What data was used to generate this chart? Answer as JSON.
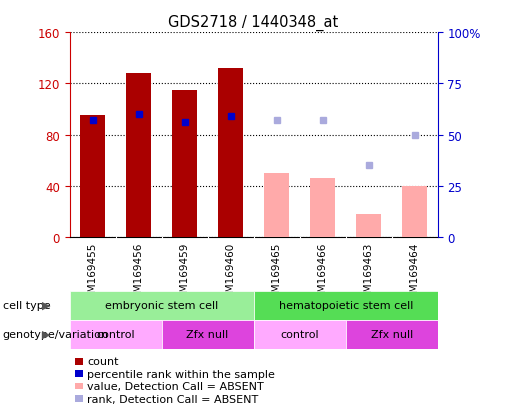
{
  "title": "GDS2718 / 1440348_at",
  "samples": [
    "GSM169455",
    "GSM169456",
    "GSM169459",
    "GSM169460",
    "GSM169465",
    "GSM169466",
    "GSM169463",
    "GSM169464"
  ],
  "count_values": [
    95,
    128,
    115,
    132,
    null,
    null,
    null,
    null
  ],
  "count_absent": [
    null,
    null,
    null,
    null,
    50,
    46,
    18,
    40
  ],
  "rank_values_pct": [
    57,
    60,
    56,
    59,
    null,
    null,
    null,
    null
  ],
  "rank_absent_pct": [
    null,
    null,
    null,
    null,
    57,
    57,
    35,
    50
  ],
  "left_ylim": [
    0,
    160
  ],
  "right_ylim": [
    0,
    100
  ],
  "left_yticks": [
    0,
    40,
    80,
    120,
    160
  ],
  "right_yticks": [
    0,
    25,
    50,
    75,
    100
  ],
  "right_yticklabels": [
    "0",
    "25",
    "50",
    "75",
    "100%"
  ],
  "count_color": "#aa0000",
  "count_absent_color": "#ffaaaa",
  "rank_color": "#0000cc",
  "rank_absent_color": "#aaaadd",
  "tick_label_color_left": "#cc0000",
  "tick_label_color_right": "#0000cc",
  "cell_type_green_light": "#99ee99",
  "cell_type_green_dark": "#55dd55",
  "geno_light": "#ffaaff",
  "geno_dark": "#dd44dd",
  "xlabels_bg": "#cccccc"
}
